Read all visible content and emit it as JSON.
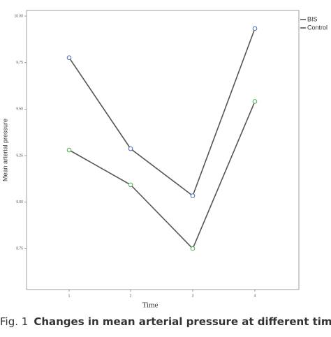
{
  "chart_data": {
    "type": "line",
    "x_label": "Time",
    "y_label": "Mean arterial pressure",
    "categories": [
      "1",
      "2",
      "3",
      "4"
    ],
    "series": [
      {
        "name": "BIS",
        "color": "#4a6db5",
        "values": [
          9.776,
          9.287,
          9.034,
          9.933
        ]
      },
      {
        "name": "Control",
        "color": "#4caf50",
        "values": [
          9.28,
          9.093,
          8.75,
          9.541
        ]
      }
    ],
    "ylim": [
      8.53,
      10.03
    ],
    "yticks": [
      {
        "value": 8.75,
        "label": "8.75"
      },
      {
        "value": 9,
        "label": "9.00"
      },
      {
        "value": 9.25,
        "label": "9.25"
      },
      {
        "value": 9.5,
        "label": "9.50"
      },
      {
        "value": 9.75,
        "label": "9.75"
      },
      {
        "value": 10,
        "label": "10.00"
      }
    ],
    "line_color": "#555555",
    "legend": "top-right"
  },
  "caption": {
    "label": "Fig. 1",
    "text": "Changes in mean arterial pressure at different times."
  }
}
